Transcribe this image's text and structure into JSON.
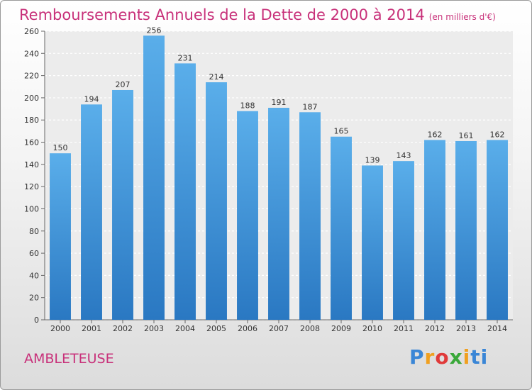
{
  "header": {
    "title": "Remboursements Annuels de la Dette de 2000 à 2014",
    "unit": "(en milliers d'€)"
  },
  "footer": {
    "commune": "AMBLETEUSE",
    "logo": [
      "P",
      "r",
      "o",
      "x",
      "i",
      "ti"
    ]
  },
  "colors": {
    "bar_top": "#5aaeea",
    "bar_bottom": "#2a78c2",
    "title": "#c8317a"
  },
  "chart_data": {
    "type": "bar",
    "title": "Remboursements Annuels de la Dette de 2000 à 2014",
    "xlabel": "",
    "ylabel": "",
    "ylim": [
      0,
      260
    ],
    "yticks": [
      0,
      20,
      40,
      60,
      80,
      100,
      120,
      140,
      160,
      180,
      200,
      220,
      240,
      260
    ],
    "grid": true,
    "categories": [
      "2000",
      "2001",
      "2002",
      "2003",
      "2004",
      "2005",
      "2006",
      "2007",
      "2008",
      "2009",
      "2010",
      "2011",
      "2012",
      "2013",
      "2014"
    ],
    "values": [
      150,
      194,
      207,
      256,
      231,
      214,
      188,
      191,
      187,
      165,
      139,
      143,
      162,
      161,
      162
    ]
  }
}
